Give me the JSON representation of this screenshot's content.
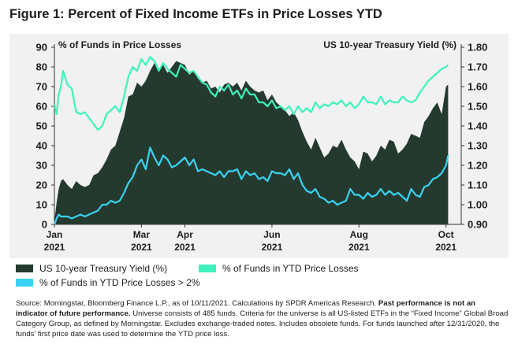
{
  "title": "Figure 1: Percent of Fixed Income ETFs in Price Losses YTD",
  "colors": {
    "treasury": "#253a2f",
    "ytd_losses": "#3ff2bd",
    "losses_2pct": "#38d3f2",
    "panel_bg": "#f1f1f1"
  },
  "chart_data": {
    "type": "area",
    "left_axis": {
      "label": "% of Funds in Price Losses",
      "ticks": [
        "0",
        "10",
        "20",
        "30",
        "40",
        "50",
        "60",
        "70",
        "80",
        "90"
      ],
      "range": [
        0,
        90
      ]
    },
    "right_axis": {
      "label": "US 10-year Treasury Yield (%)",
      "ticks": [
        "0.90",
        "1.00",
        "1.10",
        "1.20",
        "1.30",
        "1.40",
        "1.50",
        "1.60",
        "1.70",
        "1.80"
      ],
      "range": [
        0.9,
        1.8
      ]
    },
    "x_ticks": [
      {
        "month": "Jan",
        "year": "2021",
        "x": 0
      },
      {
        "month": "Mar",
        "year": "2021",
        "x": 2
      },
      {
        "month": "Apr",
        "year": "2021",
        "x": 3
      },
      {
        "month": "Jun",
        "year": "2021",
        "x": 5
      },
      {
        "month": "Aug",
        "year": "2021",
        "x": 7
      },
      {
        "month": "Oct",
        "year": "2021",
        "x": 9
      }
    ],
    "x_range": [
      0,
      9.35
    ],
    "series": [
      {
        "name": "US 10-year Treasury Yield (%)",
        "kind": "area",
        "axis": "right",
        "x": [
          0,
          0.05,
          0.1,
          0.15,
          0.2,
          0.3,
          0.4,
          0.5,
          0.6,
          0.7,
          0.8,
          0.9,
          1.0,
          1.1,
          1.2,
          1.3,
          1.4,
          1.5,
          1.6,
          1.7,
          1.8,
          1.9,
          2.0,
          2.1,
          2.2,
          2.3,
          2.4,
          2.5,
          2.6,
          2.7,
          2.8,
          2.9,
          3.0,
          3.1,
          3.2,
          3.3,
          3.4,
          3.5,
          3.6,
          3.7,
          3.8,
          3.9,
          4.0,
          4.1,
          4.2,
          4.3,
          4.4,
          4.5,
          4.6,
          4.7,
          4.8,
          4.9,
          5.0,
          5.1,
          5.2,
          5.3,
          5.4,
          5.5,
          5.6,
          5.7,
          5.8,
          5.9,
          6.0,
          6.1,
          6.2,
          6.3,
          6.4,
          6.5,
          6.6,
          6.7,
          6.8,
          6.9,
          7.0,
          7.1,
          7.2,
          7.3,
          7.4,
          7.5,
          7.6,
          7.7,
          7.8,
          7.9,
          8.0,
          8.1,
          8.2,
          8.3,
          8.4,
          8.5,
          8.6,
          8.7,
          8.8,
          8.9,
          9.0,
          9.05
        ],
        "values": [
          0.92,
          1.01,
          1.08,
          1.12,
          1.13,
          1.1,
          1.08,
          1.12,
          1.1,
          1.09,
          1.1,
          1.15,
          1.16,
          1.19,
          1.23,
          1.28,
          1.3,
          1.37,
          1.44,
          1.55,
          1.56,
          1.62,
          1.6,
          1.63,
          1.68,
          1.72,
          1.69,
          1.71,
          1.67,
          1.7,
          1.73,
          1.72,
          1.71,
          1.66,
          1.68,
          1.64,
          1.62,
          1.63,
          1.59,
          1.6,
          1.57,
          1.61,
          1.62,
          1.6,
          1.62,
          1.58,
          1.63,
          1.6,
          1.58,
          1.57,
          1.58,
          1.53,
          1.56,
          1.52,
          1.5,
          1.48,
          1.45,
          1.47,
          1.43,
          1.37,
          1.32,
          1.28,
          1.34,
          1.29,
          1.24,
          1.26,
          1.3,
          1.29,
          1.33,
          1.28,
          1.24,
          1.22,
          1.18,
          1.27,
          1.26,
          1.22,
          1.25,
          1.3,
          1.28,
          1.33,
          1.32,
          1.26,
          1.28,
          1.31,
          1.36,
          1.35,
          1.34,
          1.42,
          1.45,
          1.49,
          1.52,
          1.46,
          1.6,
          1.61
        ]
      },
      {
        "name": "% of Funds in YTD Price Losses",
        "kind": "line",
        "axis": "left",
        "x": [
          0,
          0.05,
          0.1,
          0.15,
          0.2,
          0.3,
          0.4,
          0.5,
          0.6,
          0.7,
          0.8,
          0.9,
          1.0,
          1.1,
          1.2,
          1.3,
          1.4,
          1.5,
          1.6,
          1.7,
          1.8,
          1.9,
          2.0,
          2.1,
          2.2,
          2.3,
          2.4,
          2.5,
          2.6,
          2.7,
          2.8,
          2.9,
          3.0,
          3.1,
          3.2,
          3.3,
          3.4,
          3.5,
          3.6,
          3.7,
          3.8,
          3.9,
          4.0,
          4.1,
          4.2,
          4.3,
          4.4,
          4.5,
          4.6,
          4.7,
          4.8,
          4.9,
          5.0,
          5.1,
          5.2,
          5.3,
          5.4,
          5.5,
          5.6,
          5.7,
          5.8,
          5.9,
          6.0,
          6.1,
          6.2,
          6.3,
          6.4,
          6.5,
          6.6,
          6.7,
          6.8,
          6.9,
          7.0,
          7.1,
          7.2,
          7.3,
          7.4,
          7.5,
          7.6,
          7.7,
          7.8,
          7.9,
          8.0,
          8.1,
          8.2,
          8.3,
          8.4,
          8.5,
          8.6,
          8.7,
          8.8,
          8.9,
          9.0,
          9.05
        ],
        "values": [
          61,
          56,
          66,
          70,
          78,
          71,
          69,
          57,
          56,
          57,
          54,
          51,
          48,
          50,
          56,
          58,
          60,
          57,
          65,
          75,
          80,
          78,
          84,
          81,
          85,
          83,
          78,
          82,
          79,
          77,
          75,
          81,
          79,
          77,
          78,
          75,
          72,
          71,
          67,
          65,
          70,
          68,
          71,
          66,
          68,
          64,
          69,
          66,
          66,
          62,
          62,
          60,
          63,
          59,
          60,
          58,
          60,
          56,
          60,
          57,
          59,
          57,
          62,
          59,
          61,
          60,
          62,
          61,
          63,
          60,
          62,
          59,
          61,
          65,
          62,
          62,
          61,
          65,
          61,
          63,
          62,
          62,
          65,
          63,
          62,
          63,
          67,
          70,
          73,
          75,
          77,
          79,
          80,
          81
        ]
      },
      {
        "name": "% of Funds in YTD Price Losses > 2%",
        "kind": "line",
        "axis": "left",
        "x": [
          0,
          0.05,
          0.1,
          0.15,
          0.2,
          0.3,
          0.4,
          0.5,
          0.6,
          0.7,
          0.8,
          0.9,
          1.0,
          1.1,
          1.2,
          1.3,
          1.4,
          1.5,
          1.6,
          1.7,
          1.8,
          1.9,
          2.0,
          2.1,
          2.2,
          2.3,
          2.4,
          2.5,
          2.6,
          2.7,
          2.8,
          2.9,
          3.0,
          3.1,
          3.2,
          3.3,
          3.4,
          3.5,
          3.6,
          3.7,
          3.8,
          3.9,
          4.0,
          4.1,
          4.2,
          4.3,
          4.4,
          4.5,
          4.6,
          4.7,
          4.8,
          4.9,
          5.0,
          5.1,
          5.2,
          5.3,
          5.4,
          5.5,
          5.6,
          5.7,
          5.8,
          5.9,
          6.0,
          6.1,
          6.2,
          6.3,
          6.4,
          6.5,
          6.6,
          6.7,
          6.8,
          6.9,
          7.0,
          7.1,
          7.2,
          7.3,
          7.4,
          7.5,
          7.6,
          7.7,
          7.8,
          7.9,
          8.0,
          8.1,
          8.2,
          8.3,
          8.4,
          8.5,
          8.6,
          8.7,
          8.8,
          8.9,
          9.0,
          9.05
        ],
        "values": [
          0,
          3,
          5,
          4,
          4,
          4,
          3,
          4,
          5,
          4,
          5,
          6,
          7,
          10,
          10,
          12,
          11,
          12,
          16,
          21,
          24,
          30,
          33,
          28,
          39,
          34,
          30,
          35,
          33,
          29,
          30,
          32,
          34,
          30,
          33,
          27,
          28,
          27,
          26,
          25,
          27,
          24,
          27,
          27,
          28,
          23,
          27,
          25,
          26,
          23,
          24,
          22,
          27,
          26,
          26,
          25,
          28,
          23,
          26,
          20,
          17,
          16,
          18,
          14,
          13,
          11,
          12,
          10,
          11,
          12,
          18,
          15,
          15,
          13,
          16,
          14,
          15,
          18,
          15,
          17,
          15,
          16,
          14,
          12,
          18,
          15,
          14,
          19,
          20,
          23,
          24,
          26,
          30,
          35
        ]
      }
    ]
  },
  "legend": {
    "treasury": "US 10-year Treasury Yield (%)",
    "ytd_losses": "% of Funds in YTD Price Losses",
    "losses_2pct": "% of Funds in YTD Price Losses > 2%"
  },
  "source": {
    "part1": "Source: Morningstar, Bloomberg Finance L.P., as of 10/11/2021. Calculations by SPDR Americas Research. ",
    "bold": "Past performance is not an indicator of future performance.",
    "part2": " Universe consists of 485 funds. Criteria for the universe is all US-listed ETFs in the “Fixed Income” Global Broad Category Group, as defined by Morningstar. Excludes exchange-traded notes. Includes obsolete funds. For funds launched after 12/31/2020, the funds’ first price date was used to determine the YTD price loss."
  }
}
